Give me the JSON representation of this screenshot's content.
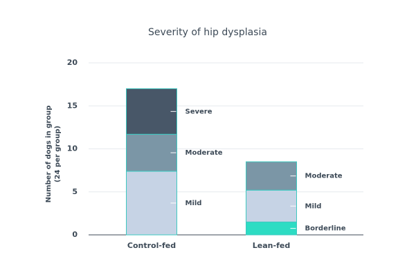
{
  "chart_data": {
    "type": "bar",
    "stacked": true,
    "title": "Severity of hip dysplasia",
    "y_label": [
      "Number of dogs in group",
      "(24 per group)"
    ],
    "categories": [
      "Control-fed",
      "Lean-fed"
    ],
    "series": [
      {
        "name": "Borderline",
        "color": "#2ddcc3",
        "values": [
          0,
          1.5
        ]
      },
      {
        "name": "Mild",
        "color": "#c6d3e5",
        "values": [
          7.4,
          3.7
        ]
      },
      {
        "name": "Moderate",
        "color": "#7b96a6",
        "values": [
          4.3,
          3.3
        ]
      },
      {
        "name": "Severe",
        "color": "#485768",
        "values": [
          5.3,
          0
        ]
      }
    ],
    "ylim": [
      0,
      20
    ],
    "yticks": [
      0,
      5,
      10,
      15,
      20
    ],
    "grid": true
  }
}
